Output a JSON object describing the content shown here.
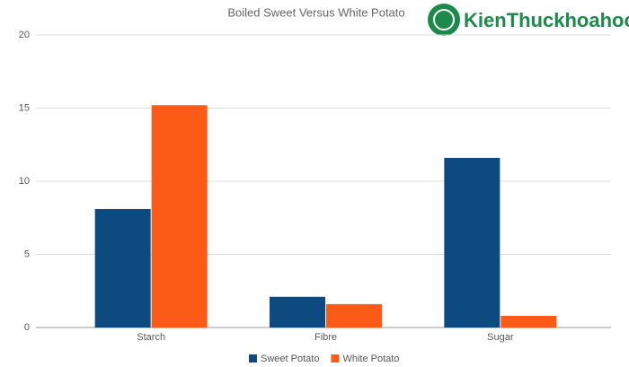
{
  "chart_data": {
    "type": "bar",
    "title": "Boiled Sweet Versus White Potato",
    "categories": [
      "Starch",
      "Fibre",
      "Sugar"
    ],
    "series": [
      {
        "name": "Sweet Potato",
        "color": "#0d4a80",
        "values": [
          8.1,
          2.1,
          11.6
        ]
      },
      {
        "name": "White Potato",
        "color": "#fc5b17",
        "values": [
          15.2,
          1.6,
          0.8
        ]
      }
    ],
    "ylim": [
      0,
      20
    ],
    "yticks": [
      0,
      5,
      10,
      15,
      20
    ],
    "grid": true,
    "legend": "bottom",
    "watermark": "KienThuckhoahoc.org"
  }
}
